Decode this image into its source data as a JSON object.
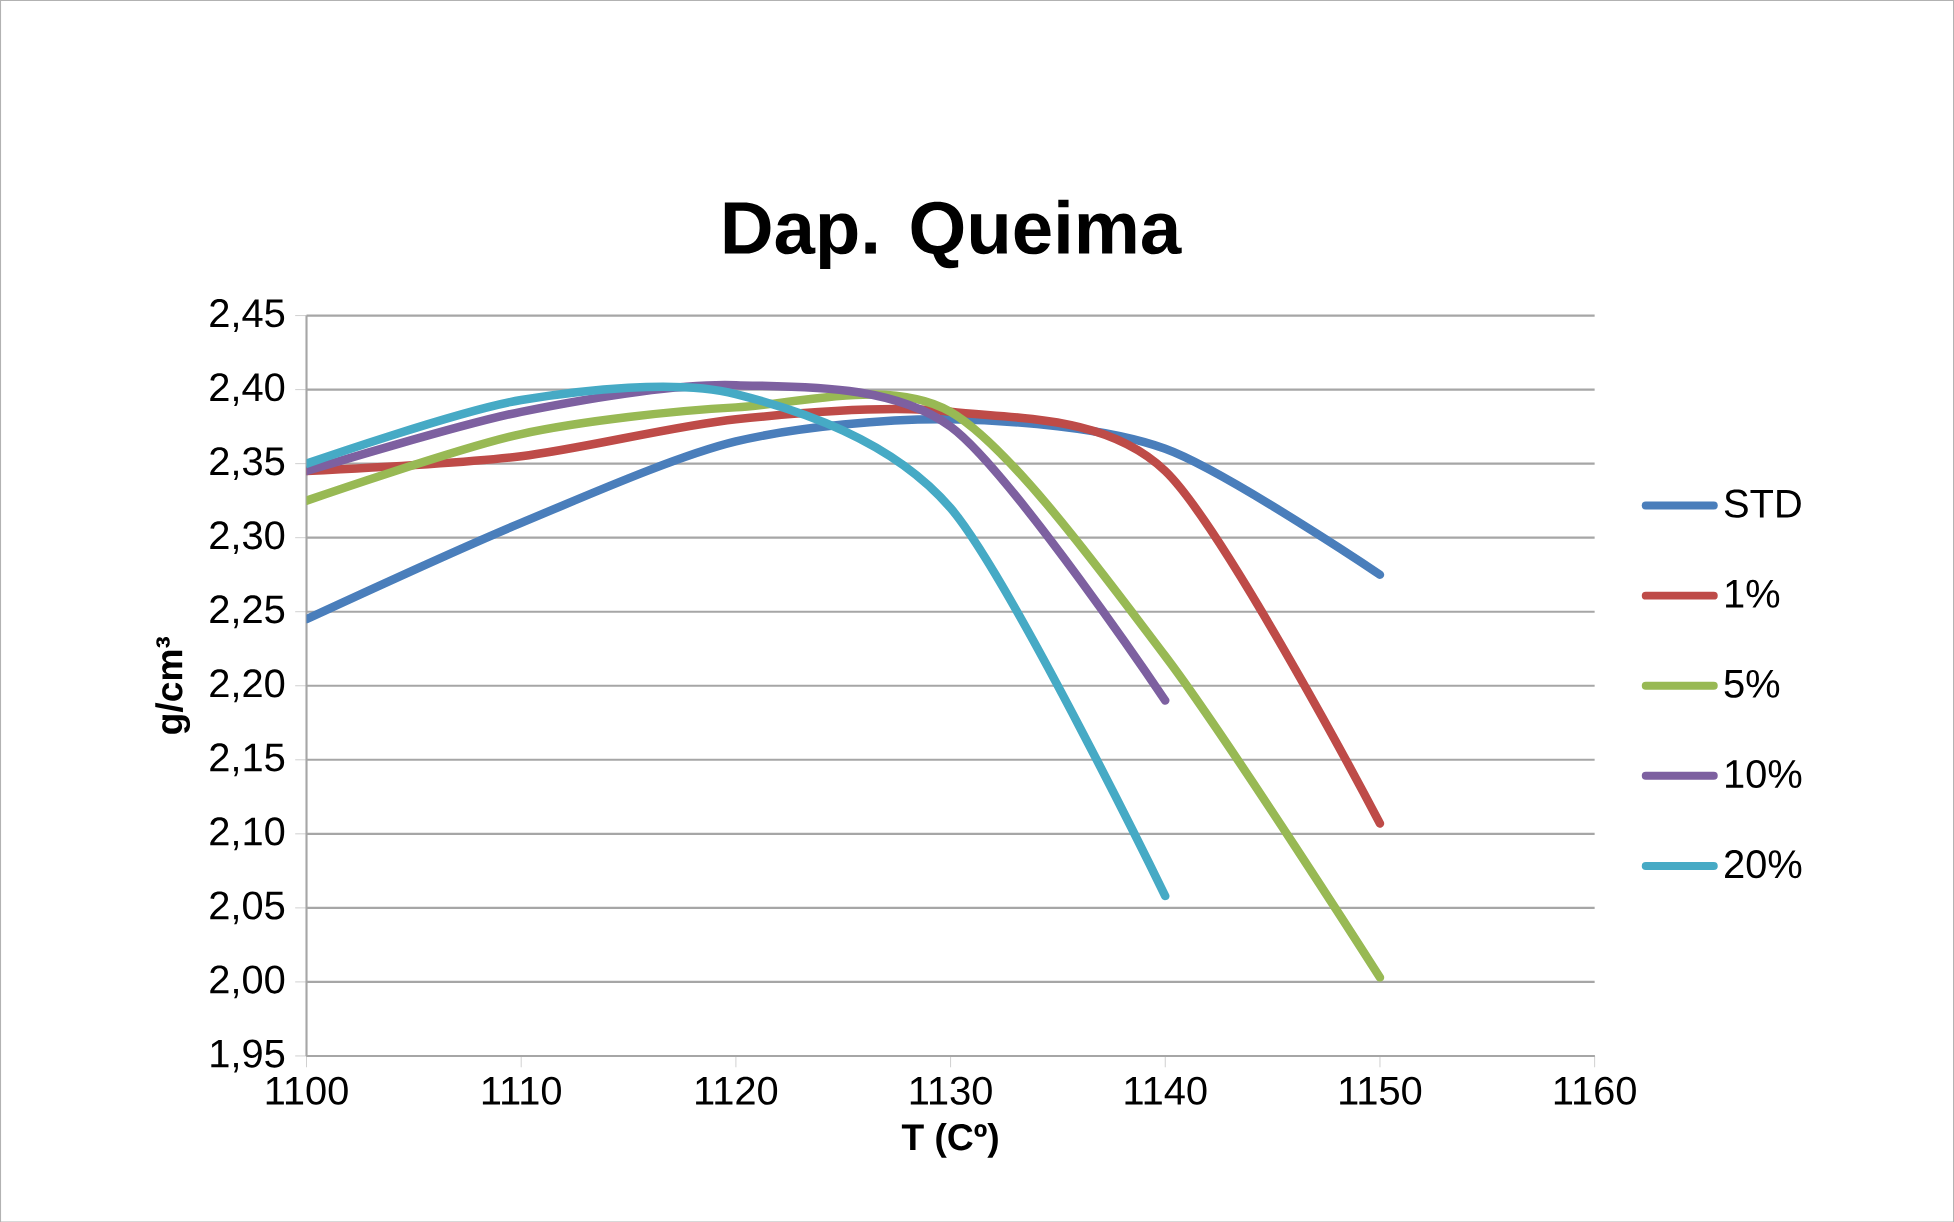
{
  "chart_data": {
    "type": "line",
    "title": "Dap. Queima",
    "xlabel": "T (Cº)",
    "ylabel": "g/cm³",
    "x": [
      1100,
      1110,
      1120,
      1130,
      1140,
      1150
    ],
    "series": [
      {
        "name": "STD",
        "color": "#4a7ebb",
        "values": [
          2.245,
          2.31,
          2.365,
          2.38,
          2.36,
          2.275
        ]
      },
      {
        "name": "1%",
        "color": "#be4b48",
        "values": [
          2.345,
          2.355,
          2.38,
          2.385,
          2.345,
          2.107
        ]
      },
      {
        "name": "5%",
        "color": "#98b954",
        "values": [
          2.325,
          2.37,
          2.388,
          2.385,
          2.22,
          2.003
        ]
      },
      {
        "name": "10%",
        "color": "#7d60a0",
        "values": [
          2.345,
          2.385,
          2.403,
          2.375,
          2.19,
          null
        ]
      },
      {
        "name": "20%",
        "color": "#46aac5",
        "values": [
          2.35,
          2.393,
          2.397,
          2.32,
          2.058,
          null
        ]
      }
    ],
    "xlim": [
      1100,
      1160
    ],
    "xticks": [
      1100,
      1110,
      1120,
      1130,
      1140,
      1150,
      1160
    ],
    "ylim": [
      1.95,
      2.45
    ],
    "yticks": [
      {
        "value": 1.95,
        "label": "1,95"
      },
      {
        "value": 2.0,
        "label": "2,00"
      },
      {
        "value": 2.05,
        "label": "2,05"
      },
      {
        "value": 2.1,
        "label": "2,10"
      },
      {
        "value": 2.15,
        "label": "2,15"
      },
      {
        "value": 2.2,
        "label": "2,20"
      },
      {
        "value": 2.25,
        "label": "2,25"
      },
      {
        "value": 2.3,
        "label": "2,30"
      },
      {
        "value": 2.35,
        "label": "2,35"
      },
      {
        "value": 2.4,
        "label": "2,40"
      },
      {
        "value": 2.45,
        "label": "2,45"
      }
    ],
    "grid": "y",
    "legend": "right",
    "marker": "none",
    "line_style": "solid"
  }
}
